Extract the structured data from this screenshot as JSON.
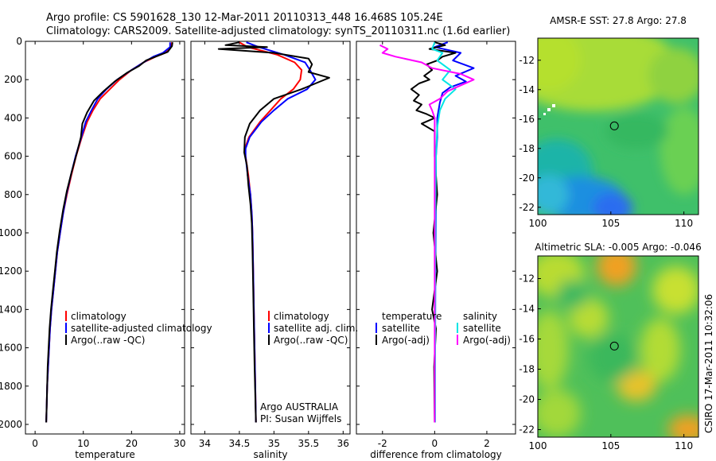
{
  "figure": {
    "title_line1": "Argo profile: CS 5901628_130 12-Mar-2011 20110313_448 16.468S 105.24E",
    "title_line2": "Climatology: CARS2009. Satellite-adjusted climatology: synTS_20110311.nc (1.6d earlier)",
    "stamp": "CSIRO 17-Mar-2011 10:32:06",
    "argo_label": "Argo AUSTRALIA",
    "pi_label": "PI: Susan Wijffels"
  },
  "colors": {
    "climatology": "#ff0000",
    "satellite": "#0000ff",
    "argo": "#000000",
    "sal_satellite": "#00e5e5",
    "sal_argo": "#ff00ff"
  },
  "chart_data": [
    {
      "id": "temperature",
      "type": "line",
      "xlabel": "temperature",
      "ylabel": "",
      "xlim": [
        -2,
        31
      ],
      "ylim": [
        2050,
        0
      ],
      "xticks": [
        0,
        10,
        20,
        30
      ],
      "yticks": [
        0,
        200,
        400,
        600,
        800,
        1000,
        1200,
        1400,
        1600,
        1800,
        2000
      ],
      "legend": [
        "climatology",
        "satellite-adjusted climatology",
        "Argo(..raw -QC)"
      ],
      "series": [
        {
          "name": "climatology",
          "color": "#ff0000",
          "points": [
            [
              28.4,
              5
            ],
            [
              28.2,
              30
            ],
            [
              27.0,
              60
            ],
            [
              25.0,
              80
            ],
            [
              22.5,
              110
            ],
            [
              20.0,
              150
            ],
            [
              17.5,
              200
            ],
            [
              15.5,
              250
            ],
            [
              13.5,
              300
            ],
            [
              12.0,
              360
            ],
            [
              10.8,
              420
            ],
            [
              9.7,
              500
            ],
            [
              8.5,
              600
            ],
            [
              7.5,
              700
            ],
            [
              6.6,
              800
            ],
            [
              5.8,
              900
            ],
            [
              5.2,
              1000
            ],
            [
              4.6,
              1100
            ],
            [
              4.2,
              1200
            ],
            [
              3.8,
              1300
            ],
            [
              3.4,
              1400
            ],
            [
              3.1,
              1500
            ],
            [
              2.9,
              1600
            ],
            [
              2.7,
              1700
            ],
            [
              2.5,
              1800
            ],
            [
              2.4,
              1900
            ],
            [
              2.3,
              1990
            ]
          ]
        },
        {
          "name": "satellite-adjusted climatology",
          "color": "#0000ff",
          "points": [
            [
              28.0,
              5
            ],
            [
              28.0,
              30
            ],
            [
              26.5,
              60
            ],
            [
              24.5,
              80
            ],
            [
              22.5,
              110
            ],
            [
              20.0,
              150
            ],
            [
              17.0,
              200
            ],
            [
              14.8,
              250
            ],
            [
              13.0,
              300
            ],
            [
              11.7,
              360
            ],
            [
              10.5,
              420
            ],
            [
              9.6,
              500
            ],
            [
              8.4,
              600
            ],
            [
              7.4,
              700
            ],
            [
              6.5,
              800
            ],
            [
              5.8,
              900
            ],
            [
              5.2,
              1000
            ],
            [
              4.6,
              1100
            ],
            [
              4.2,
              1200
            ],
            [
              3.8,
              1300
            ],
            [
              3.4,
              1400
            ],
            [
              3.1,
              1500
            ],
            [
              2.9,
              1600
            ],
            [
              2.7,
              1700
            ],
            [
              2.5,
              1800
            ],
            [
              2.4,
              1900
            ],
            [
              2.3,
              1990
            ]
          ]
        },
        {
          "name": "Argo(..raw -QC)",
          "color": "#000000",
          "points": [
            [
              28.5,
              5
            ],
            [
              28.4,
              25
            ],
            [
              27.5,
              55
            ],
            [
              25.5,
              75
            ],
            [
              23.0,
              100
            ],
            [
              21.5,
              130
            ],
            [
              19.0,
              165
            ],
            [
              16.5,
              210
            ],
            [
              14.2,
              260
            ],
            [
              12.2,
              310
            ],
            [
              10.8,
              370
            ],
            [
              9.8,
              430
            ],
            [
              9.5,
              500
            ],
            [
              8.7,
              580
            ],
            [
              7.6,
              680
            ],
            [
              6.6,
              780
            ],
            [
              5.8,
              880
            ],
            [
              5.1,
              990
            ],
            [
              4.5,
              1100
            ],
            [
              4.1,
              1200
            ],
            [
              3.7,
              1300
            ],
            [
              3.3,
              1400
            ],
            [
              3.0,
              1500
            ],
            [
              2.8,
              1600
            ],
            [
              2.6,
              1700
            ],
            [
              2.5,
              1800
            ],
            [
              2.4,
              1900
            ],
            [
              2.3,
              1990
            ]
          ]
        }
      ]
    },
    {
      "id": "salinity",
      "type": "line",
      "xlabel": "salinity",
      "ylabel": "",
      "xlim": [
        33.8,
        36.1
      ],
      "ylim": [
        2050,
        0
      ],
      "xticks": [
        34,
        34.5,
        35,
        35.5,
        36
      ],
      "yticks": [],
      "legend": [
        "climatology",
        "satellite adj. clim.",
        "Argo(..raw -QC)"
      ],
      "series": [
        {
          "name": "climatology",
          "color": "#ff0000",
          "points": [
            [
              34.5,
              5
            ],
            [
              34.62,
              30
            ],
            [
              35.05,
              70
            ],
            [
              35.3,
              110
            ],
            [
              35.4,
              150
            ],
            [
              35.38,
              200
            ],
            [
              35.28,
              250
            ],
            [
              35.1,
              300
            ],
            [
              34.95,
              360
            ],
            [
              34.8,
              420
            ],
            [
              34.64,
              500
            ],
            [
              34.58,
              560
            ],
            [
              34.59,
              600
            ],
            [
              34.63,
              700
            ],
            [
              34.66,
              800
            ],
            [
              34.68,
              900
            ],
            [
              34.69,
              1000
            ],
            [
              34.7,
              1200
            ],
            [
              34.71,
              1400
            ],
            [
              34.72,
              1600
            ],
            [
              34.73,
              1800
            ],
            [
              34.74,
              1990
            ]
          ]
        },
        {
          "name": "satellite adj. clim.",
          "color": "#0000ff",
          "points": [
            [
              34.6,
              5
            ],
            [
              34.78,
              30
            ],
            [
              35.15,
              70
            ],
            [
              35.45,
              110
            ],
            [
              35.52,
              150
            ],
            [
              35.6,
              200
            ],
            [
              35.48,
              250
            ],
            [
              35.2,
              300
            ],
            [
              35.0,
              360
            ],
            [
              34.82,
              420
            ],
            [
              34.65,
              500
            ],
            [
              34.59,
              560
            ],
            [
              34.59,
              600
            ],
            [
              34.62,
              700
            ],
            [
              34.66,
              800
            ],
            [
              34.68,
              900
            ],
            [
              34.69,
              1000
            ],
            [
              34.7,
              1200
            ],
            [
              34.71,
              1400
            ],
            [
              34.72,
              1600
            ],
            [
              34.73,
              1800
            ],
            [
              34.74,
              1990
            ]
          ]
        },
        {
          "name": "Argo(..raw -QC)",
          "color": "#000000",
          "points": [
            [
              34.5,
              5
            ],
            [
              34.3,
              20
            ],
            [
              34.9,
              30
            ],
            [
              34.2,
              40
            ],
            [
              35.0,
              60
            ],
            [
              35.5,
              90
            ],
            [
              35.55,
              120
            ],
            [
              35.5,
              160
            ],
            [
              35.8,
              190
            ],
            [
              35.6,
              220
            ],
            [
              35.4,
              250
            ],
            [
              35.0,
              300
            ],
            [
              34.8,
              360
            ],
            [
              34.65,
              430
            ],
            [
              34.58,
              500
            ],
            [
              34.57,
              580
            ],
            [
              34.61,
              650
            ],
            [
              34.63,
              750
            ],
            [
              34.66,
              850
            ],
            [
              34.68,
              950
            ],
            [
              34.69,
              1100
            ],
            [
              34.7,
              1300
            ],
            [
              34.71,
              1500
            ],
            [
              34.72,
              1700
            ],
            [
              34.73,
              1850
            ],
            [
              34.74,
              1990
            ]
          ]
        }
      ]
    },
    {
      "id": "difference",
      "type": "line",
      "xlabel": "difference from climatology",
      "ylabel": "",
      "xlim": [
        -3,
        3.1
      ],
      "ylim": [
        2050,
        0
      ],
      "xticks": [
        -2,
        0,
        2
      ],
      "yticks": [],
      "legend_left_title": "temperature",
      "legend_right_title": "salinity",
      "legend": [
        "satellite",
        "Argo(-adj)",
        "satellite",
        "Argo(-adj)"
      ],
      "series": [
        {
          "name": "satellite",
          "color": "#0000ff",
          "points": [
            [
              0.5,
              5
            ],
            [
              0.0,
              30
            ],
            [
              1.0,
              60
            ],
            [
              0.7,
              100
            ],
            [
              1.5,
              140
            ],
            [
              0.8,
              180
            ],
            [
              1.2,
              210
            ],
            [
              0.6,
              240
            ],
            [
              0.3,
              270
            ],
            [
              0.2,
              320
            ],
            [
              0.1,
              400
            ],
            [
              0.1,
              500
            ],
            [
              0.05,
              600
            ],
            [
              0.05,
              800
            ],
            [
              0.03,
              1200
            ],
            [
              0.02,
              1600
            ],
            [
              0.02,
              1990
            ]
          ]
        },
        {
          "name": "Argo(-adj)",
          "color": "#000000",
          "points": [
            [
              0.0,
              5
            ],
            [
              0.4,
              20
            ],
            [
              -0.2,
              40
            ],
            [
              0.8,
              60
            ],
            [
              0.3,
              80
            ],
            [
              0.1,
              100
            ],
            [
              -0.3,
              120
            ],
            [
              -0.1,
              150
            ],
            [
              -0.4,
              180
            ],
            [
              -0.2,
              200
            ],
            [
              -0.6,
              220
            ],
            [
              -0.9,
              250
            ],
            [
              -0.6,
              280
            ],
            [
              -0.8,
              310
            ],
            [
              -0.5,
              330
            ],
            [
              -0.7,
              360
            ],
            [
              -0.3,
              380
            ],
            [
              0.0,
              400
            ],
            [
              -0.5,
              430
            ],
            [
              0.0,
              470
            ],
            [
              0.0,
              600
            ],
            [
              0.1,
              800
            ],
            [
              -0.05,
              1000
            ],
            [
              0.1,
              1200
            ],
            [
              -0.1,
              1400
            ],
            [
              0.05,
              1500
            ],
            [
              -0.02,
              1700
            ],
            [
              0.0,
              1990
            ]
          ]
        },
        {
          "name": "satellite",
          "color": "#00e5e5",
          "points": [
            [
              0.0,
              5
            ],
            [
              -0.1,
              40
            ],
            [
              0.3,
              60
            ],
            [
              0.1,
              100
            ],
            [
              0.6,
              150
            ],
            [
              0.3,
              200
            ],
            [
              0.8,
              250
            ],
            [
              0.4,
              300
            ],
            [
              0.2,
              360
            ],
            [
              0.1,
              450
            ],
            [
              0.05,
              600
            ],
            [
              0.03,
              900
            ],
            [
              0.02,
              1300
            ],
            [
              0.02,
              1700
            ],
            [
              0.02,
              1990
            ]
          ]
        },
        {
          "name": "Argo(-adj)",
          "color": "#ff00ff",
          "points": [
            [
              -2.1,
              20
            ],
            [
              -1.8,
              40
            ],
            [
              -2.0,
              60
            ],
            [
              -1.5,
              80
            ],
            [
              -0.5,
              110
            ],
            [
              -0.1,
              140
            ],
            [
              1.0,
              170
            ],
            [
              1.5,
              200
            ],
            [
              1.0,
              230
            ],
            [
              0.5,
              260
            ],
            [
              0.2,
              300
            ],
            [
              -0.2,
              330
            ],
            [
              -0.1,
              360
            ],
            [
              0.0,
              400
            ],
            [
              0.0,
              500
            ],
            [
              0.0,
              800
            ],
            [
              0.0,
              1200
            ],
            [
              0.0,
              1600
            ],
            [
              0.0,
              1990
            ]
          ]
        }
      ]
    },
    {
      "id": "sst_map",
      "type": "heatmap",
      "title": "AMSR-E SST: 27.8  Argo: 27.8",
      "xlim": [
        100,
        111
      ],
      "ylim": [
        -22.5,
        -10.5
      ],
      "xticks": [
        100,
        105,
        110
      ],
      "yticks": [
        -12,
        -14,
        -16,
        -18,
        -20,
        -22
      ],
      "marker": {
        "lon": 105.24,
        "lat": -16.468
      }
    },
    {
      "id": "sla_map",
      "type": "heatmap",
      "title": "Altimetric SLA: -0.005  Argo: -0.046",
      "xlim": [
        100,
        111
      ],
      "ylim": [
        -22.5,
        -10.5
      ],
      "xticks": [
        100,
        105,
        110
      ],
      "yticks": [
        -12,
        -14,
        -16,
        -18,
        -20,
        -22
      ],
      "marker": {
        "lon": 105.24,
        "lat": -16.468
      }
    }
  ]
}
